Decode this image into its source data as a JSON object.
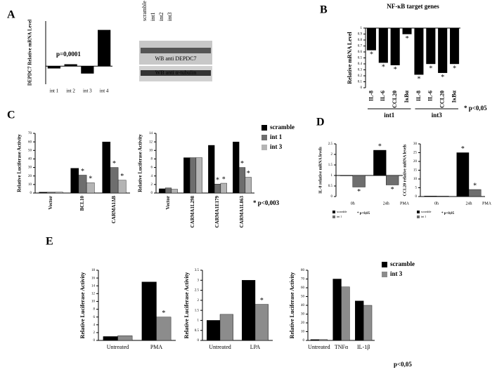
{
  "blot": {
    "panel": "A",
    "lanes": [
      "scramble",
      "int1",
      "int2",
      "int3"
    ],
    "probes": [
      "WB anti DEPDC7",
      "WB anti α-tubulin"
    ]
  },
  "chart_data": [
    {
      "type": "bar",
      "panel": "A",
      "ylabel": "DEPDC7 Relative mRNA Level",
      "annotation": "p=0,0001",
      "baseline": 1,
      "categories": [
        "int 1",
        "int 2",
        "int 3",
        "int 4"
      ],
      "ylim": [
        0,
        3.5
      ],
      "series": [
        {
          "color": "#000000",
          "values": [
            0.88,
            1.1,
            0.6,
            3.0
          ]
        }
      ]
    },
    {
      "type": "bar",
      "panel": "B",
      "title": "NF-κB target genes",
      "ylabel": "Relative mRNA Level",
      "annotation": "* p<0,05",
      "significance_mark": "*",
      "baseline": 1,
      "categories": [
        "IL-8",
        "IL-6",
        "CCL20",
        "IκBα",
        "IL-8",
        "IL-6",
        "CCL20",
        "IκBα"
      ],
      "groups": [
        "int1",
        "int3"
      ],
      "ylim": [
        0,
        1
      ],
      "yticks": [
        0,
        0.1,
        0.2,
        0.3,
        0.4,
        0.5,
        0.6,
        0.7,
        0.8,
        0.9,
        1
      ],
      "series": [
        {
          "color": "#000000",
          "values": [
            0.63,
            0.42,
            0.38,
            0.9,
            0.22,
            0.4,
            0.25,
            0.4
          ],
          "significant": [
            true,
            true,
            true,
            true,
            true,
            true,
            true,
            true
          ]
        }
      ]
    },
    {
      "type": "bar",
      "panel": "C",
      "ylabel": "Relative Luciferase Activity",
      "significance_mark": "*",
      "categories": [
        "Vector",
        "BCL10",
        "CARMA1ΔB"
      ],
      "ylim": [
        0,
        70
      ],
      "yticks": [
        0,
        10,
        20,
        30,
        40,
        50,
        60,
        70
      ],
      "series": [
        {
          "name": "scramble",
          "color": "#000000",
          "values": [
            1,
            29,
            60
          ],
          "significant": [
            false,
            false,
            false
          ]
        },
        {
          "name": "int 1",
          "color": "#6e6e6e",
          "values": [
            1,
            21,
            30
          ],
          "significant": [
            false,
            true,
            true
          ]
        },
        {
          "name": "int 3",
          "color": "#b4b4b4",
          "values": [
            1,
            12,
            15
          ],
          "significant": [
            false,
            true,
            true
          ]
        }
      ]
    },
    {
      "type": "bar",
      "ylabel": "Relative Luciferase Activity",
      "annotation": "* p<0,003",
      "significance_mark": "*",
      "legend": "right",
      "categories": [
        "Vector",
        "CARMA1L298",
        "CARMA1E179",
        "CARMA1L863"
      ],
      "ylim": [
        0,
        14
      ],
      "yticks": [
        0,
        2,
        4,
        6,
        8,
        10,
        12,
        14
      ],
      "series": [
        {
          "name": "scramble",
          "color": "#000000",
          "values": [
            1,
            8.3,
            11.2,
            12
          ],
          "significant": [
            false,
            false,
            false,
            false
          ]
        },
        {
          "name": "int 1",
          "color": "#6e6e6e",
          "values": [
            1.2,
            8.3,
            2.1,
            6
          ],
          "significant": [
            false,
            false,
            true,
            true
          ]
        },
        {
          "name": "int 3",
          "color": "#b4b4b4",
          "values": [
            0.9,
            8.3,
            2.3,
            3.7
          ],
          "significant": [
            false,
            false,
            true,
            true
          ]
        }
      ]
    },
    {
      "type": "bar",
      "panel": "D",
      "ylabel": "IL-8 relative mRNA levels",
      "annotation": "* p<0,05",
      "x_note": "PMA",
      "significance_mark": "*",
      "legend": "bottom",
      "baseline": 1,
      "categories": [
        "0h",
        "24h"
      ],
      "ylim": [
        0,
        2.5
      ],
      "yticks": [
        0,
        0.5,
        1,
        1.5,
        2,
        2.5
      ],
      "series": [
        {
          "name": "scramble",
          "color": "#000000",
          "values": [
            1,
            2.2
          ],
          "significant": [
            false,
            true
          ]
        },
        {
          "name": "int 1",
          "color": "#6e6e6e",
          "values": [
            0.45,
            0.55
          ],
          "significant": [
            true,
            true
          ]
        }
      ]
    },
    {
      "type": "bar",
      "ylabel": "CCL20 relative mRNA levels",
      "annotation": "* p<0,05",
      "x_note": "PMA",
      "significance_mark": "*",
      "legend": "bottom",
      "categories": [
        "0h",
        "24h"
      ],
      "ylim": [
        0,
        30
      ],
      "yticks": [
        0,
        5,
        10,
        15,
        20,
        25,
        30
      ],
      "series": [
        {
          "name": "scramble",
          "color": "#000000",
          "values": [
            0.3,
            25
          ],
          "significant": [
            false,
            true
          ]
        },
        {
          "name": "int 1",
          "color": "#6e6e6e",
          "values": [
            0.3,
            4
          ],
          "significant": [
            false,
            true
          ]
        }
      ]
    },
    {
      "type": "bar",
      "panel": "E",
      "ylabel": "Relative Luciferase Activity",
      "significance_mark": "*",
      "categories": [
        "Untreated",
        "PMA"
      ],
      "ylim": [
        0,
        18
      ],
      "yticks": [
        0,
        2,
        4,
        6,
        8,
        10,
        12,
        14,
        16,
        18
      ],
      "series": [
        {
          "name": "scramble",
          "color": "#000000",
          "values": [
            1,
            15
          ],
          "significant": [
            false,
            false
          ]
        },
        {
          "name": "int 3",
          "color": "#8c8c8c",
          "values": [
            1.2,
            6
          ],
          "significant": [
            false,
            true
          ]
        }
      ]
    },
    {
      "type": "bar",
      "ylabel": "Relative Luciferase Activity",
      "significance_mark": "*",
      "categories": [
        "Untreated",
        "LPA"
      ],
      "ylim": [
        0,
        3.5
      ],
      "yticks": [
        0,
        0.5,
        1,
        1.5,
        2,
        2.5,
        3,
        3.5
      ],
      "series": [
        {
          "name": "scramble",
          "color": "#000000",
          "values": [
            1,
            3
          ],
          "significant": [
            false,
            false
          ]
        },
        {
          "name": "int 3",
          "color": "#8c8c8c",
          "values": [
            1.3,
            1.8
          ],
          "significant": [
            false,
            true
          ]
        }
      ]
    },
    {
      "type": "bar",
      "ylabel": "Relative Luciferase Activity",
      "annotation": "p<0,05",
      "legend": "right",
      "categories": [
        "Untreated",
        "TNFα",
        "IL-1β"
      ],
      "ylim": [
        0,
        80
      ],
      "yticks": [
        0,
        10,
        20,
        30,
        40,
        50,
        60,
        70,
        80
      ],
      "series": [
        {
          "name": "scramble",
          "color": "#000000",
          "values": [
            1,
            70,
            45
          ]
        },
        {
          "name": "int 3",
          "color": "#8c8c8c",
          "values": [
            1,
            61,
            40
          ]
        }
      ]
    }
  ]
}
